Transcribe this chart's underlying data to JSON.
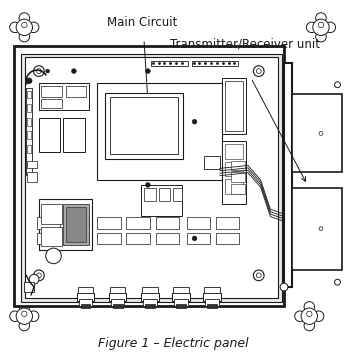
{
  "title": "Figure 1 – Electric panel",
  "label_main_circuit": "Main Circuit",
  "label_transmitter": "Transmitter/Receiver unit",
  "bg_color": "#ffffff",
  "line_color": "#1a1a1a",
  "title_fontsize": 9,
  "label_fontsize": 8.5
}
